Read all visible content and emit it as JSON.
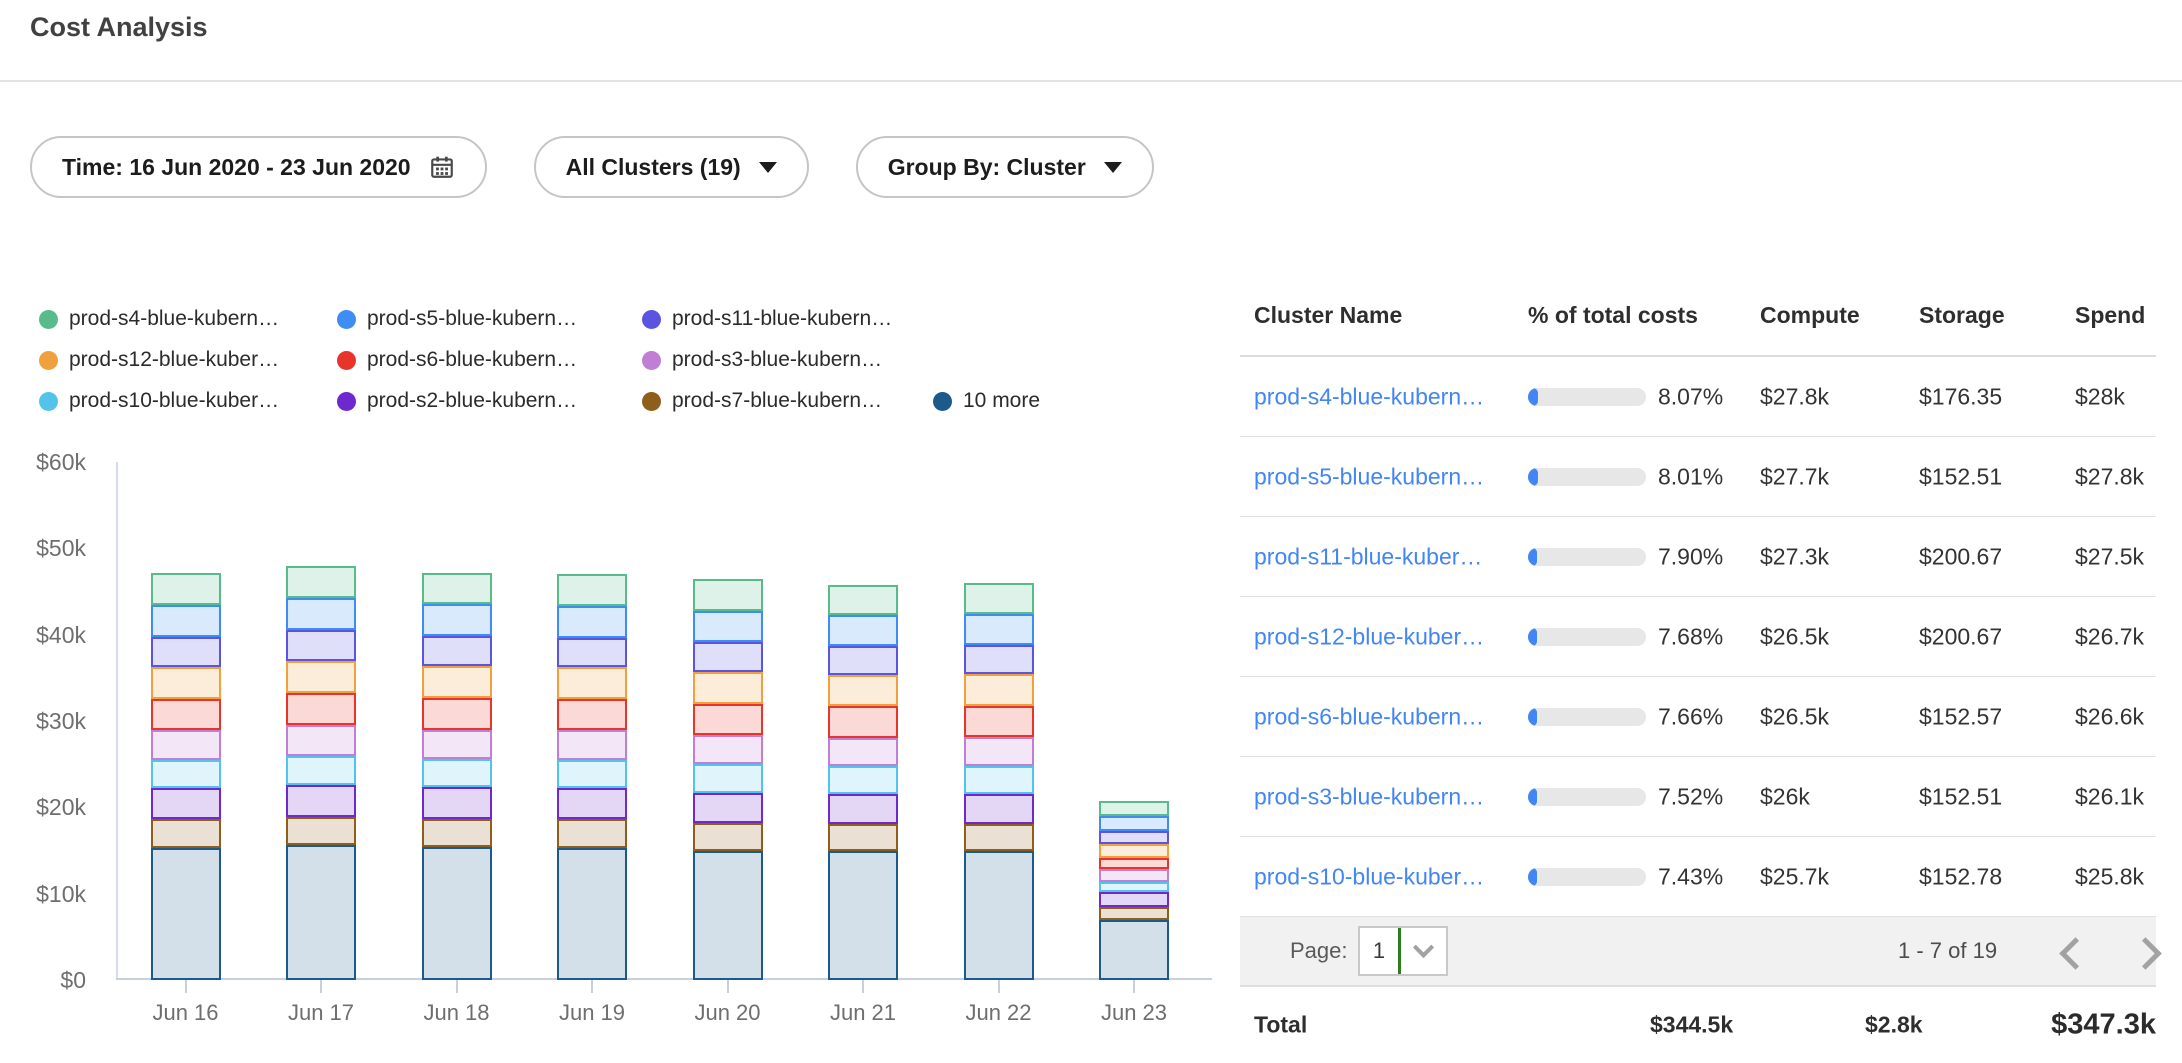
{
  "page": {
    "title": "Cost Analysis"
  },
  "filters": {
    "time": {
      "label": "Time: 16 Jun 2020 - 23 Jun 2020"
    },
    "clusters": {
      "label": "All Clusters (19)"
    },
    "group_by": {
      "label": "Group By: Cluster"
    }
  },
  "chart_data": {
    "type": "bar",
    "stacked": true,
    "unit": "USD thousands",
    "categories": [
      "Jun 16",
      "Jun 17",
      "Jun 18",
      "Jun 19",
      "Jun 20",
      "Jun 21",
      "Jun 22",
      "Jun 23"
    ],
    "series": [
      {
        "name": "prod-s4-blue-kubern…",
        "color": "#57bb8a",
        "values": [
          3.7,
          3.7,
          3.7,
          3.7,
          3.6,
          3.5,
          3.6,
          1.8
        ]
      },
      {
        "name": "prod-s5-blue-kubern…",
        "color": "#3d8df5",
        "values": [
          3.7,
          3.8,
          3.7,
          3.7,
          3.7,
          3.6,
          3.6,
          1.7
        ]
      },
      {
        "name": "prod-s11-blue-kubern…",
        "color": "#5b54e0",
        "values": [
          3.4,
          3.5,
          3.4,
          3.4,
          3.4,
          3.4,
          3.4,
          1.5
        ]
      },
      {
        "name": "prod-s12-blue-kuber…",
        "color": "#f0a03c",
        "values": [
          3.7,
          3.8,
          3.7,
          3.7,
          3.7,
          3.6,
          3.6,
          1.6
        ]
      },
      {
        "name": "prod-s6-blue-kubern…",
        "color": "#e8352b",
        "values": [
          3.7,
          3.7,
          3.7,
          3.6,
          3.6,
          3.6,
          3.6,
          1.3
        ]
      },
      {
        "name": "prod-s3-blue-kubern…",
        "color": "#c07fd5",
        "values": [
          3.4,
          3.5,
          3.4,
          3.4,
          3.4,
          3.3,
          3.4,
          1.5
        ]
      },
      {
        "name": "prod-s10-blue-kuber…",
        "color": "#54c3eb",
        "values": [
          3.3,
          3.4,
          3.3,
          3.3,
          3.3,
          3.2,
          3.2,
          1.2
        ]
      },
      {
        "name": "prod-s2-blue-kubern…",
        "color": "#6d28cf",
        "values": [
          3.6,
          3.7,
          3.6,
          3.6,
          3.5,
          3.5,
          3.5,
          1.7
        ]
      },
      {
        "name": "prod-s7-blue-kubern…",
        "color": "#8f5e1b",
        "values": [
          3.3,
          3.3,
          3.3,
          3.3,
          3.2,
          3.2,
          3.2,
          1.5
        ]
      },
      {
        "name": "10 more",
        "color": "#1d5a8c",
        "values": [
          15.3,
          15.6,
          15.4,
          15.3,
          15.0,
          14.9,
          14.9,
          7.0
        ]
      }
    ],
    "y_tick_labels": [
      "$60k",
      "$50k",
      "$40k",
      "$30k",
      "$20k",
      "$10k",
      "$0"
    ],
    "ylim": [
      0,
      60
    ],
    "legend_position": "top",
    "grid": false
  },
  "table": {
    "columns": [
      "Cluster Name",
      "% of total costs",
      "Compute",
      "Storage",
      "Spend"
    ],
    "rows": [
      {
        "name": "prod-s4-blue-kubern…",
        "pct": "8.07%",
        "pct_value": 8.07,
        "compute": "$27.8k",
        "storage": "$176.35",
        "spend": "$28k"
      },
      {
        "name": "prod-s5-blue-kubern…",
        "pct": "8.01%",
        "pct_value": 8.01,
        "compute": "$27.7k",
        "storage": "$152.51",
        "spend": "$27.8k"
      },
      {
        "name": "prod-s11-blue-kuber…",
        "pct": "7.90%",
        "pct_value": 7.9,
        "compute": "$27.3k",
        "storage": "$200.67",
        "spend": "$27.5k"
      },
      {
        "name": "prod-s12-blue-kuber…",
        "pct": "7.68%",
        "pct_value": 7.68,
        "compute": "$26.5k",
        "storage": "$200.67",
        "spend": "$26.7k"
      },
      {
        "name": "prod-s6-blue-kubern…",
        "pct": "7.66%",
        "pct_value": 7.66,
        "compute": "$26.5k",
        "storage": "$152.57",
        "spend": "$26.6k"
      },
      {
        "name": "prod-s3-blue-kubern…",
        "pct": "7.52%",
        "pct_value": 7.52,
        "compute": "$26k",
        "storage": "$152.51",
        "spend": "$26.1k"
      },
      {
        "name": "prod-s10-blue-kuber…",
        "pct": "7.43%",
        "pct_value": 7.43,
        "compute": "$25.7k",
        "storage": "$152.78",
        "spend": "$25.8k"
      }
    ],
    "pagination": {
      "label": "Page:",
      "page": "1",
      "range": "1 - 7 of 19"
    },
    "total": {
      "label": "Total",
      "compute": "$344.5k",
      "storage": "$2.8k",
      "spend": "$347.3k"
    }
  },
  "colors": {
    "link_blue": "#4285f4",
    "progress_fill": "#4285f4",
    "progress_track": "#e7e7e7",
    "select_divider_green": "#2e7d1f"
  }
}
